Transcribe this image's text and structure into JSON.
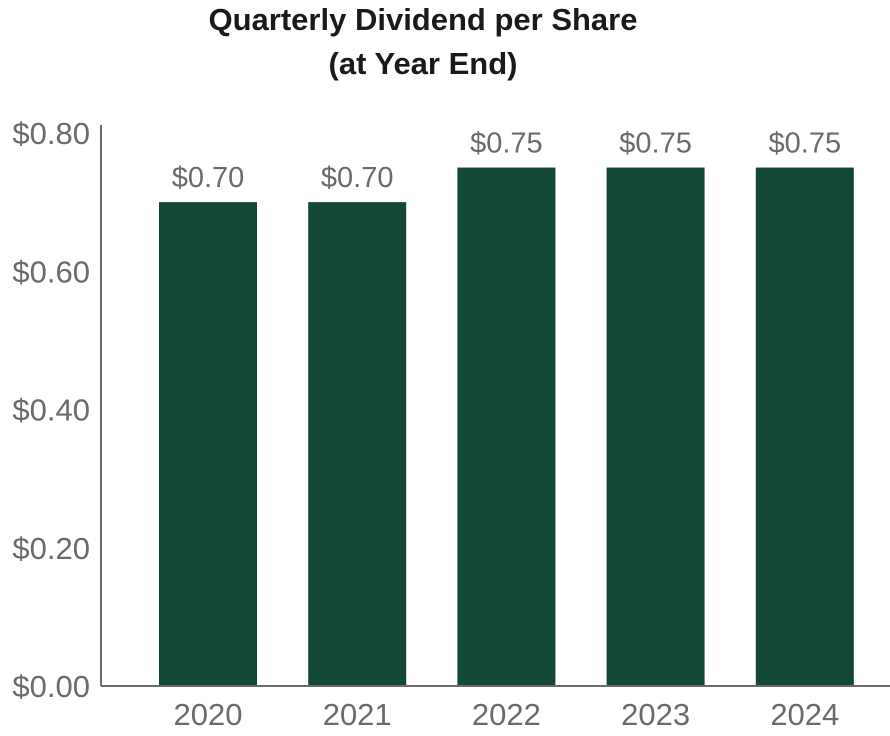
{
  "chart_data": {
    "type": "bar",
    "title": [
      "Quarterly Dividend per Share",
      "(at Year End)"
    ],
    "categories": [
      "2020",
      "2021",
      "2022",
      "2023",
      "2024"
    ],
    "values": [
      0.7,
      0.7,
      0.75,
      0.75,
      0.75
    ],
    "data_labels": [
      "$0.70",
      "$0.70",
      "$0.75",
      "$0.75",
      "$0.75"
    ],
    "ylim": [
      0,
      0.8
    ],
    "yticks": [
      0,
      0.2,
      0.4,
      0.6,
      0.8
    ],
    "ytick_labels": [
      "$0.00",
      "$0.20",
      "$0.40",
      "$0.60",
      "$0.80"
    ],
    "xlabel": "",
    "ylabel": "",
    "grid": false,
    "legend": "none"
  },
  "colors": {
    "bar": "#134834",
    "axis": "#6b6b6b",
    "text": "#6b6b6b",
    "title": "#1a1a1a"
  }
}
